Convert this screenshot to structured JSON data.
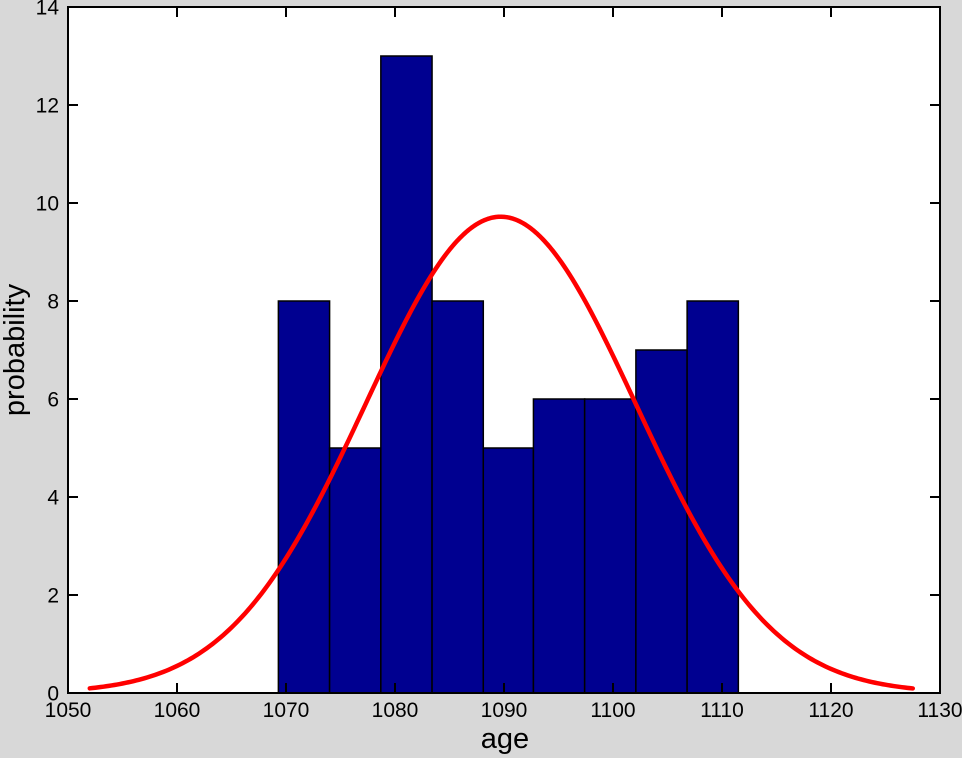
{
  "figure": {
    "background_color": "#d8d8d8",
    "plot_background_color": "#ffffff",
    "axis_color": "#000000"
  },
  "chart_data": {
    "type": "bar",
    "subtype": "histogram-with-gaussian-fit",
    "title": "",
    "xlabel": "age",
    "ylabel": "probability",
    "xlim": [
      1050,
      1130
    ],
    "ylim": [
      0,
      14
    ],
    "xticks": [
      1050,
      1060,
      1070,
      1080,
      1090,
      1100,
      1110,
      1120,
      1130
    ],
    "yticks": [
      0,
      2,
      4,
      6,
      8,
      10,
      12,
      14
    ],
    "grid": false,
    "legend": null,
    "bins": {
      "edges": [
        1069.3,
        1074.0,
        1078.7,
        1083.4,
        1088.1,
        1092.7,
        1097.4,
        1102.1,
        1106.8,
        1111.5
      ],
      "counts": [
        8,
        5,
        13,
        8,
        5,
        6,
        6,
        7,
        8
      ],
      "fill_color": "#000090",
      "edge_color": "#000000"
    },
    "fit_curve": {
      "shape": "gaussian",
      "mean": 1089.7,
      "sigma": 12.4,
      "peak": 9.72,
      "x_range": [
        1052,
        1127.5
      ],
      "color": "#ff0000",
      "line_width": 4.5
    }
  }
}
